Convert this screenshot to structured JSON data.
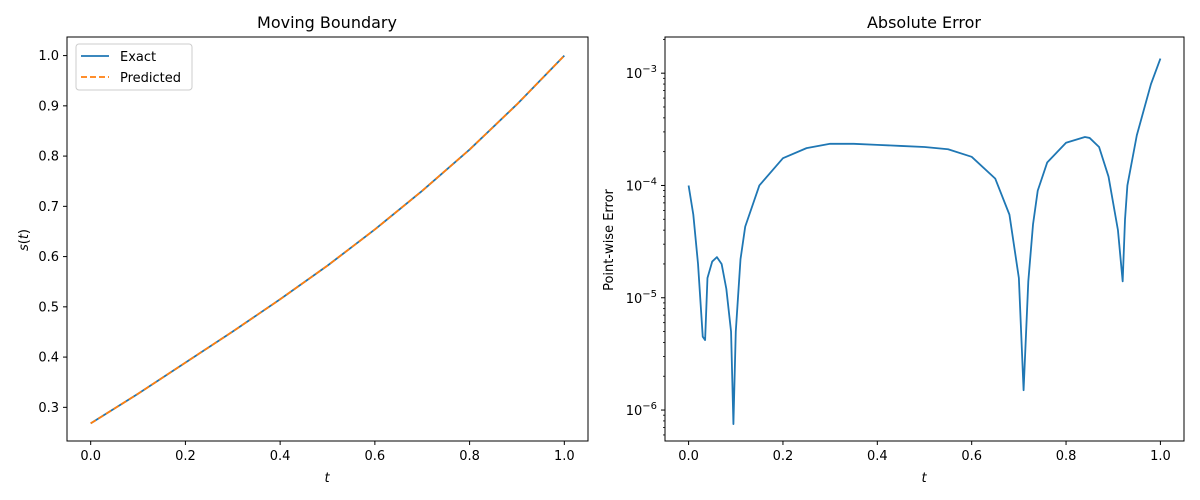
{
  "chart_data": [
    {
      "type": "line",
      "title": "Moving Boundary",
      "xlabel": "t",
      "ylabel": "s(t)",
      "xlim": [
        -0.05,
        1.05
      ],
      "ylim": [
        0.233,
        1.037
      ],
      "xticks": [
        "0.0",
        "0.2",
        "0.4",
        "0.6",
        "0.8",
        "1.0"
      ],
      "yticks": [
        "0.3",
        "0.4",
        "0.5",
        "0.6",
        "0.7",
        "0.8",
        "0.9",
        "1.0"
      ],
      "grid": false,
      "legend_position": "upper left",
      "x": [
        0.0,
        0.1,
        0.2,
        0.3,
        0.4,
        0.5,
        0.6,
        0.7,
        0.8,
        0.9,
        1.0
      ],
      "series": [
        {
          "name": "Exact",
          "color": "#1f77b4",
          "style": "solid",
          "values": [
            0.268,
            0.327,
            0.389,
            0.451,
            0.515,
            0.582,
            0.654,
            0.731,
            0.813,
            0.903,
            1.0
          ]
        },
        {
          "name": "Predicted",
          "color": "#ff7f0e",
          "style": "dashed",
          "values": [
            0.268,
            0.327,
            0.389,
            0.451,
            0.515,
            0.582,
            0.654,
            0.731,
            0.813,
            0.903,
            1.0
          ]
        }
      ]
    },
    {
      "type": "line",
      "title": "Absolute Error",
      "xlabel": "t",
      "ylabel": "Point-wise Error",
      "yscale": "log",
      "xlim": [
        -0.05,
        1.05
      ],
      "ylim": [
        5.3e-07,
        0.0021
      ],
      "xticks": [
        "0.0",
        "0.2",
        "0.4",
        "0.6",
        "0.8",
        "1.0"
      ],
      "yticks": [
        "10^-6",
        "10^-5",
        "10^-4",
        "10^-3"
      ],
      "grid": false,
      "series": [
        {
          "name": "Point-wise Error",
          "color": "#1f77b4",
          "x": [
            0.0,
            0.01,
            0.02,
            0.03,
            0.035,
            0.04,
            0.05,
            0.06,
            0.07,
            0.08,
            0.09,
            0.095,
            0.1,
            0.11,
            0.12,
            0.15,
            0.2,
            0.25,
            0.3,
            0.35,
            0.4,
            0.45,
            0.5,
            0.55,
            0.6,
            0.65,
            0.68,
            0.7,
            0.71,
            0.72,
            0.73,
            0.74,
            0.76,
            0.8,
            0.84,
            0.85,
            0.87,
            0.89,
            0.91,
            0.92,
            0.925,
            0.93,
            0.95,
            0.98,
            1.0
          ],
          "values": [
            0.0001,
            5.5e-05,
            2e-05,
            4.5e-06,
            4.2e-06,
            1.5e-05,
            2.1e-05,
            2.3e-05,
            2e-05,
            1.2e-05,
            5e-06,
            7.5e-07,
            5e-06,
            2.2e-05,
            4.3e-05,
            0.0001,
            0.000175,
            0.000215,
            0.000235,
            0.000235,
            0.00023,
            0.000225,
            0.00022,
            0.00021,
            0.00018,
            0.000115,
            5.5e-05,
            1.5e-05,
            1.5e-06,
            1.4e-05,
            4.5e-05,
            9e-05,
            0.00016,
            0.00024,
            0.00027,
            0.000265,
            0.00022,
            0.00012,
            4e-05,
            1.4e-05,
            5e-05,
            0.0001,
            0.00028,
            0.0008,
            0.00135
          ]
        }
      ]
    }
  ]
}
